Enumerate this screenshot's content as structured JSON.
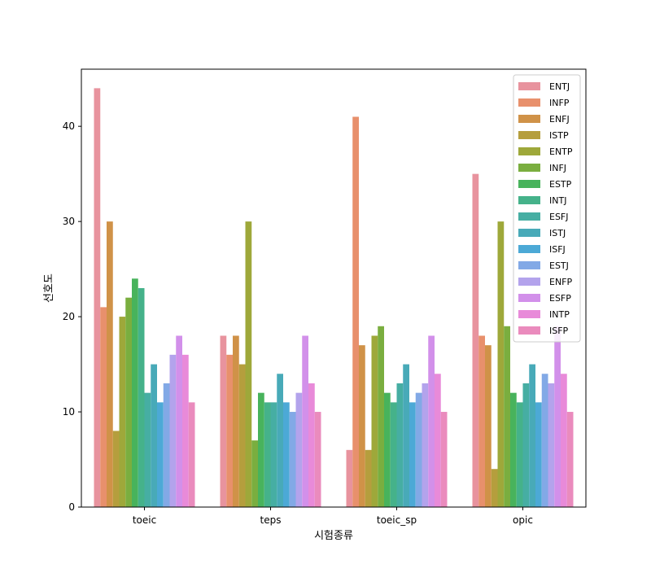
{
  "chart_data": {
    "type": "bar",
    "title": "",
    "xlabel": "시험종류",
    "ylabel": "선호도",
    "categories": [
      "toeic",
      "teps",
      "toeic_sp",
      "opic"
    ],
    "ylim": [
      0,
      46
    ],
    "yticks": [
      0,
      10,
      20,
      30,
      40
    ],
    "grid": false,
    "legend": {
      "placement": "top-right"
    },
    "series": [
      {
        "name": "ENTJ",
        "color": "#e8939e",
        "values": [
          44,
          18,
          6,
          35
        ]
      },
      {
        "name": "INFP",
        "color": "#e8906c",
        "values": [
          21,
          16,
          41,
          18
        ]
      },
      {
        "name": "ENFJ",
        "color": "#d09248",
        "values": [
          30,
          18,
          17,
          17
        ]
      },
      {
        "name": "ISTP",
        "color": "#b59e3d",
        "values": [
          8,
          15,
          6,
          4
        ]
      },
      {
        "name": "ENTP",
        "color": "#9ea83a",
        "values": [
          20,
          30,
          18,
          30
        ]
      },
      {
        "name": "INFJ",
        "color": "#7aae3f",
        "values": [
          22,
          7,
          19,
          19
        ]
      },
      {
        "name": "ESTP",
        "color": "#48b35c",
        "values": [
          24,
          12,
          12,
          12
        ]
      },
      {
        "name": "INTJ",
        "color": "#45b28a",
        "values": [
          23,
          11,
          11,
          11
        ]
      },
      {
        "name": "ESFJ",
        "color": "#46aea3",
        "values": [
          12,
          11,
          13,
          13
        ]
      },
      {
        "name": "ISTJ",
        "color": "#48aab8",
        "values": [
          15,
          14,
          15,
          15
        ]
      },
      {
        "name": "ISFJ",
        "color": "#4ca9d6",
        "values": [
          11,
          11,
          11,
          11
        ]
      },
      {
        "name": "ESTJ",
        "color": "#82a9e6",
        "values": [
          13,
          10,
          12,
          14
        ]
      },
      {
        "name": "ENFP",
        "color": "#b3a3ec",
        "values": [
          16,
          12,
          13,
          13
        ]
      },
      {
        "name": "ESFP",
        "color": "#d290ea",
        "values": [
          18,
          18,
          18,
          19
        ]
      },
      {
        "name": "INTP",
        "color": "#e88ad9",
        "values": [
          16,
          13,
          14,
          14
        ]
      },
      {
        "name": "ISFP",
        "color": "#ea8bbd",
        "values": [
          11,
          10,
          10,
          10
        ]
      }
    ]
  }
}
